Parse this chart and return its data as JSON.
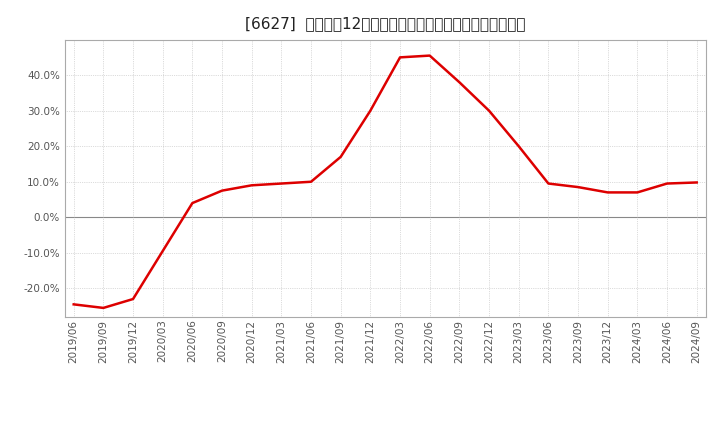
{
  "title": "[6627]  売上高の12か月移動合計の対前年同期増減率の推移",
  "line_color": "#dd0000",
  "background_color": "#ffffff",
  "plot_bg_color": "#ffffff",
  "grid_color": "#bbbbbb",
  "zero_line_color": "#888888",
  "dates": [
    "2019/06",
    "2019/09",
    "2019/12",
    "2020/03",
    "2020/06",
    "2020/09",
    "2020/12",
    "2021/03",
    "2021/06",
    "2021/09",
    "2021/12",
    "2022/03",
    "2022/06",
    "2022/09",
    "2022/12",
    "2023/03",
    "2023/06",
    "2023/09",
    "2023/12",
    "2024/03",
    "2024/06",
    "2024/09"
  ],
  "values": [
    -24.5,
    -25.5,
    -23.0,
    -9.5,
    4.0,
    7.5,
    9.0,
    9.5,
    10.0,
    17.0,
    30.0,
    45.0,
    45.5,
    38.0,
    30.0,
    20.0,
    9.5,
    8.5,
    7.0,
    7.0,
    9.5,
    9.8
  ],
  "yticks": [
    -20.0,
    -10.0,
    0.0,
    10.0,
    20.0,
    30.0,
    40.0
  ],
  "ylim": [
    -28,
    50
  ],
  "tick_fontsize": 7.5,
  "title_fontsize": 11
}
